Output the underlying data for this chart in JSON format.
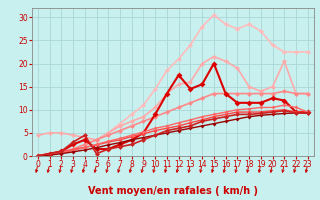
{
  "bg_color": "#c8f0ee",
  "grid_color": "#a8d8d8",
  "xlabel": "Vent moyen/en rafales ( km/h )",
  "xlim": [
    -0.5,
    23.5
  ],
  "ylim": [
    0,
    32
  ],
  "xticks": [
    0,
    1,
    2,
    3,
    4,
    5,
    6,
    7,
    8,
    9,
    10,
    11,
    12,
    13,
    14,
    15,
    16,
    17,
    18,
    19,
    20,
    21,
    22,
    23
  ],
  "yticks": [
    0,
    5,
    10,
    15,
    20,
    25,
    30
  ],
  "lines": [
    {
      "x": [
        0,
        1,
        2,
        3,
        4,
        5,
        6,
        7,
        8,
        9,
        10,
        11,
        12,
        13,
        14,
        15,
        16,
        17,
        18,
        19,
        20,
        21,
        22,
        23
      ],
      "y": [
        0,
        0.3,
        0.8,
        1.5,
        2.5,
        3.5,
        5.0,
        7.0,
        9.0,
        11.0,
        14.5,
        18.5,
        21.0,
        24.0,
        28.0,
        30.5,
        28.5,
        27.5,
        28.5,
        27.0,
        24.0,
        22.5,
        22.5,
        22.5
      ],
      "color": "#ffbbbb",
      "lw": 1.2,
      "marker": "D",
      "ms": 2.5
    },
    {
      "x": [
        0,
        1,
        2,
        3,
        4,
        5,
        6,
        7,
        8,
        9,
        10,
        11,
        12,
        13,
        14,
        15,
        16,
        17,
        18,
        19,
        20,
        21,
        22,
        23
      ],
      "y": [
        4.5,
        5.0,
        5.0,
        4.5,
        4.0,
        3.5,
        5.0,
        6.5,
        7.5,
        8.5,
        10.5,
        13.5,
        15.5,
        16.0,
        20.0,
        21.5,
        20.5,
        19.0,
        15.0,
        14.0,
        15.0,
        20.5,
        13.5,
        13.5
      ],
      "color": "#ffaaaa",
      "lw": 1.2,
      "marker": "D",
      "ms": 2.5
    },
    {
      "x": [
        0,
        1,
        2,
        3,
        4,
        5,
        6,
        7,
        8,
        9,
        10,
        11,
        12,
        13,
        14,
        15,
        16,
        17,
        18,
        19,
        20,
        21,
        22,
        23
      ],
      "y": [
        0,
        0.3,
        0.8,
        1.5,
        2.5,
        3.5,
        4.5,
        5.5,
        6.5,
        7.5,
        8.5,
        9.5,
        10.5,
        11.5,
        12.5,
        13.5,
        13.5,
        13.5,
        13.5,
        13.5,
        13.5,
        14.0,
        13.5,
        13.5
      ],
      "color": "#ff8888",
      "lw": 1.2,
      "marker": "D",
      "ms": 2.5
    },
    {
      "x": [
        0,
        1,
        2,
        3,
        4,
        5,
        6,
        7,
        8,
        9,
        10,
        11,
        12,
        13,
        14,
        15,
        16,
        17,
        18,
        19,
        20,
        21,
        22,
        23
      ],
      "y": [
        0,
        0.5,
        1.0,
        2.5,
        3.5,
        1.5,
        1.5,
        2.5,
        3.5,
        5.0,
        9.0,
        13.5,
        17.5,
        14.5,
        15.5,
        20.0,
        13.5,
        11.5,
        11.5,
        11.5,
        12.5,
        12.0,
        9.5,
        9.5
      ],
      "color": "#dd0000",
      "lw": 1.5,
      "marker": "D",
      "ms": 3.0
    },
    {
      "x": [
        0,
        1,
        2,
        3,
        4,
        5,
        6,
        7,
        8,
        9,
        10,
        11,
        12,
        13,
        14,
        15,
        16,
        17,
        18,
        19,
        20,
        21,
        22,
        23
      ],
      "y": [
        0,
        0.4,
        0.9,
        1.4,
        1.9,
        2.4,
        3.0,
        3.5,
        4.2,
        4.8,
        5.5,
        6.0,
        6.5,
        7.2,
        7.8,
        8.5,
        9.0,
        9.5,
        9.5,
        9.5,
        9.8,
        10.0,
        9.5,
        9.5
      ],
      "color": "#ff4444",
      "lw": 1.0,
      "marker": "D",
      "ms": 2.0
    },
    {
      "x": [
        0,
        1,
        2,
        3,
        4,
        5,
        6,
        7,
        8,
        9,
        10,
        11,
        12,
        13,
        14,
        15,
        16,
        17,
        18,
        19,
        20,
        21,
        22,
        23
      ],
      "y": [
        0,
        0.3,
        0.7,
        1.2,
        1.8,
        2.5,
        3.2,
        3.8,
        4.5,
        5.2,
        6.0,
        6.5,
        7.2,
        7.8,
        8.5,
        9.0,
        9.5,
        10.0,
        10.2,
        10.5,
        10.5,
        11.0,
        10.5,
        9.5
      ],
      "color": "#ff6666",
      "lw": 1.0,
      "marker": "D",
      "ms": 2.0
    },
    {
      "x": [
        0,
        1,
        2,
        3,
        4,
        5,
        6,
        7,
        8,
        9,
        10,
        11,
        12,
        13,
        14,
        15,
        16,
        17,
        18,
        19,
        20,
        21,
        22,
        23
      ],
      "y": [
        0,
        0.2,
        0.5,
        0.9,
        1.3,
        1.8,
        2.4,
        2.9,
        3.5,
        4.0,
        4.5,
        5.0,
        5.5,
        6.0,
        6.5,
        7.0,
        7.5,
        8.0,
        8.5,
        8.8,
        9.0,
        9.2,
        9.3,
        9.3
      ],
      "color": "#990000",
      "lw": 1.0,
      "marker": "D",
      "ms": 2.0
    },
    {
      "x": [
        0,
        1,
        2,
        3,
        4,
        5,
        6,
        7,
        8,
        9,
        10,
        11,
        12,
        13,
        14,
        15,
        16,
        17,
        18,
        19,
        20,
        21,
        22,
        23
      ],
      "y": [
        0,
        0.5,
        1.0,
        3.0,
        4.5,
        0.5,
        1.5,
        2.0,
        2.5,
        3.5,
        4.5,
        5.5,
        6.0,
        6.5,
        7.5,
        8.0,
        8.5,
        9.0,
        9.0,
        9.2,
        9.5,
        9.8,
        9.3,
        9.3
      ],
      "color": "#cc2222",
      "lw": 1.2,
      "marker": "D",
      "ms": 2.5
    }
  ],
  "tick_label_fontsize": 5.5,
  "xlabel_fontsize": 7.0,
  "tick_color": "#cc0000",
  "label_color": "#cc0000",
  "arrow_color": "#cc0000"
}
